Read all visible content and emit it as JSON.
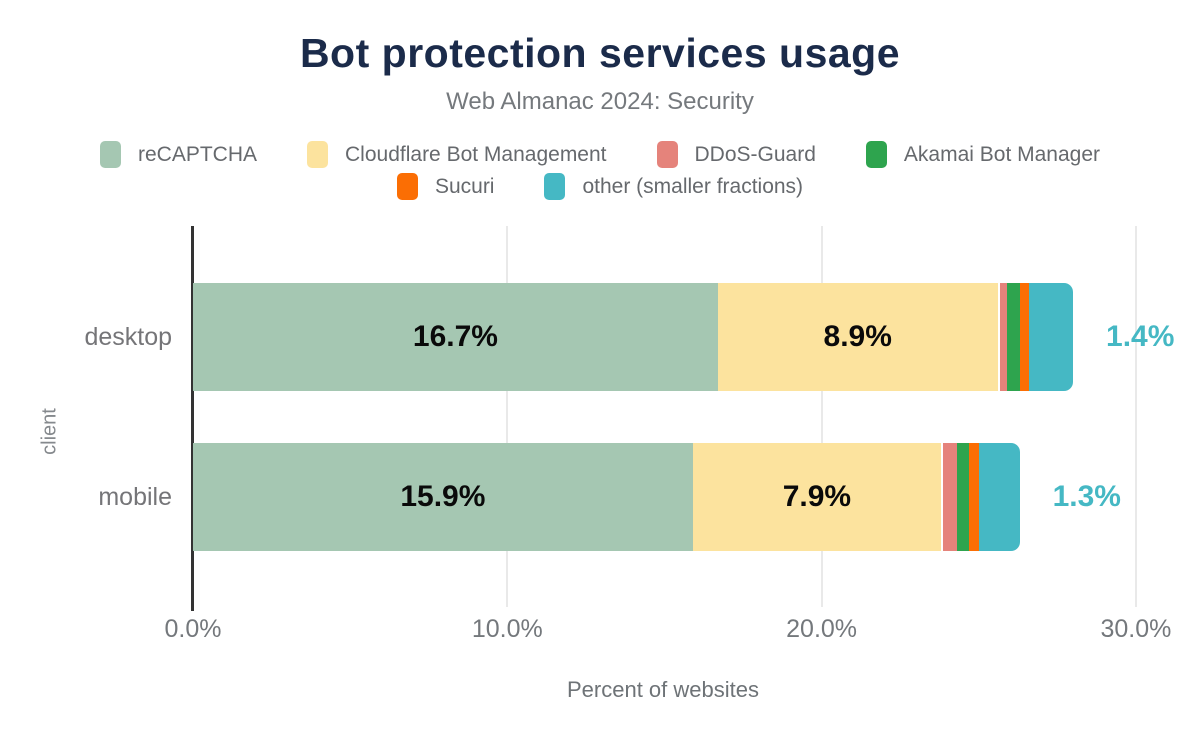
{
  "title": "Bot protection services usage",
  "subtitle": "Web Almanac 2024: Security",
  "colors": {
    "recaptcha": "#a5c7b2",
    "cloudflare": "#fce39e",
    "ddos_guard": "#e5837b",
    "akamai": "#2ea44e",
    "sucuri": "#fb6e04",
    "other": "#45b8c4",
    "title_text": "#1b2b4a",
    "axis_line": "#333333",
    "gridline": "#e9e9e9"
  },
  "legend": {
    "rows": [
      [
        {
          "label": "reCAPTCHA",
          "color": "#a5c7b2"
        },
        {
          "label": "Cloudflare Bot Management",
          "color": "#fce39e"
        },
        {
          "label": "DDoS-Guard",
          "color": "#e5837b"
        },
        {
          "label": "Akamai Bot Manager",
          "color": "#2ea44e"
        }
      ],
      [
        {
          "label": "Sucuri",
          "color": "#fb6e04"
        },
        {
          "label": "other (smaller fractions)",
          "color": "#45b8c4"
        }
      ]
    ]
  },
  "chart_data": {
    "type": "bar",
    "orientation": "horizontal-stacked",
    "categories": [
      "desktop",
      "mobile"
    ],
    "series": [
      {
        "name": "reCAPTCHA",
        "color": "#a5c7b2",
        "values": [
          16.7,
          15.9
        ],
        "labels": [
          "16.7%",
          "15.9%"
        ],
        "label_position": "inside"
      },
      {
        "name": "Cloudflare Bot Management",
        "color": "#fce39e",
        "values": [
          8.9,
          7.9
        ],
        "labels": [
          "8.9%",
          "7.9%"
        ],
        "label_position": "inside"
      },
      {
        "name": "DDoS-Guard",
        "color": "#e5837b",
        "values": [
          0.3,
          0.5
        ],
        "labels": [
          "",
          ""
        ],
        "label_position": "none"
      },
      {
        "name": "Akamai Bot Manager",
        "color": "#2ea44e",
        "values": [
          0.4,
          0.4
        ],
        "labels": [
          "",
          ""
        ],
        "label_position": "none"
      },
      {
        "name": "Sucuri",
        "color": "#fb6e04",
        "values": [
          0.3,
          0.3
        ],
        "labels": [
          "",
          ""
        ],
        "label_position": "none"
      },
      {
        "name": "other (smaller fractions)",
        "color": "#45b8c4",
        "values": [
          1.4,
          1.3
        ],
        "labels": [
          "1.4%",
          "1.3%"
        ],
        "label_position": "outside"
      }
    ],
    "totals": [
      28.0,
      26.3
    ],
    "title": "Bot protection services usage",
    "xlabel": "Percent of websites",
    "ylabel": "client",
    "xlim": [
      0,
      30
    ],
    "x_ticks": [
      {
        "label": "0.0%",
        "value": 0
      },
      {
        "label": "10.0%",
        "value": 10
      },
      {
        "label": "20.0%",
        "value": 20
      },
      {
        "label": "30.0%",
        "value": 30
      }
    ],
    "grid": true,
    "legend_position": "top"
  }
}
